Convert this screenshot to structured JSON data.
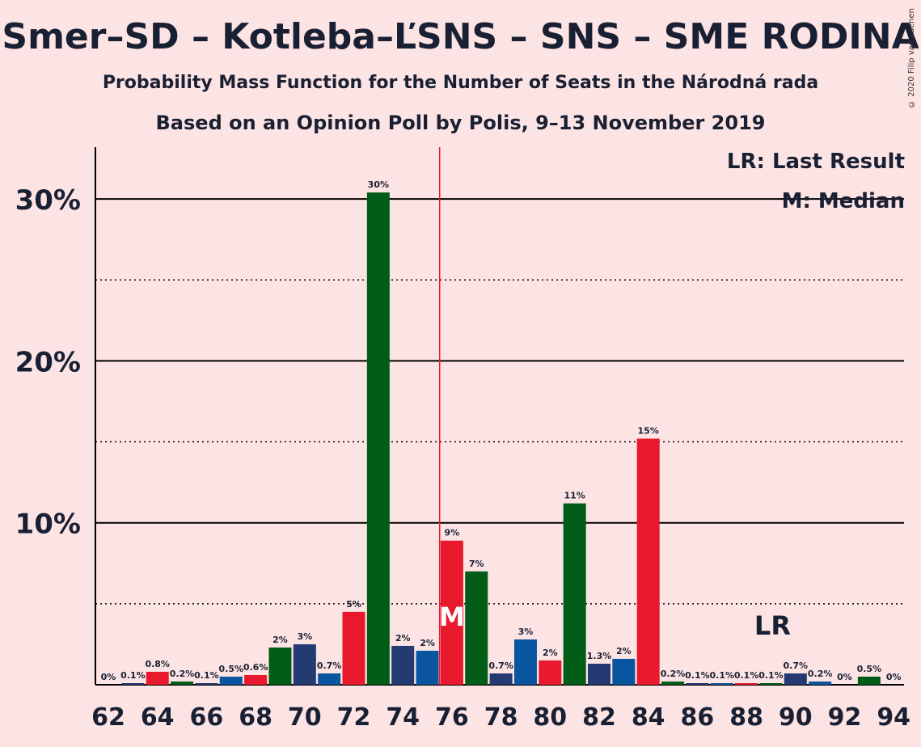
{
  "chart_data": {
    "type": "bar",
    "title": "Smer–SD – Kotleba–ĽSNS – SNS – SME RODINA",
    "subtitle1": "Probability Mass Function for the Number of Seats in the Národná rada",
    "subtitle2": "Based on an Opinion Poll by Polis, 9–13 November 2019",
    "copyright": "© 2020 Filip van Laenen",
    "legend_lr": "LR: Last Result",
    "legend_m": "M: Median",
    "median_marker": "M",
    "lr_marker": "LR",
    "median_seat": 76,
    "last_result_seat": 89,
    "ylim": [
      0,
      33
    ],
    "ytick_labels": [
      "10%",
      "20%",
      "30%"
    ],
    "yticks": [
      10,
      20,
      30
    ],
    "xtick_labels": [
      "62",
      "64",
      "66",
      "68",
      "70",
      "72",
      "74",
      "76",
      "78",
      "80",
      "82",
      "84",
      "86",
      "88",
      "90",
      "92",
      "94"
    ],
    "colors": {
      "red": "#e8192c",
      "navy": "#243a73",
      "green": "#005c16",
      "blue": "#0a55a0"
    },
    "bars": [
      {
        "x": 62,
        "value": 0.0,
        "label": "0%",
        "color": "red"
      },
      {
        "x": 63,
        "value": 0.1,
        "label": "0.1%",
        "color": "navy"
      },
      {
        "x": 64,
        "value": 0.8,
        "label": "0.8%",
        "color": "red"
      },
      {
        "x": 65,
        "value": 0.2,
        "label": "0.2%",
        "color": "green"
      },
      {
        "x": 66,
        "value": 0.1,
        "label": "0.1%",
        "color": "navy"
      },
      {
        "x": 67,
        "value": 0.5,
        "label": "0.5%",
        "color": "blue"
      },
      {
        "x": 68,
        "value": 0.6,
        "label": "0.6%",
        "color": "red"
      },
      {
        "x": 69,
        "value": 2.3,
        "label": "2%",
        "color": "green"
      },
      {
        "x": 70,
        "value": 2.5,
        "label": "3%",
        "color": "navy"
      },
      {
        "x": 71,
        "value": 0.7,
        "label": "0.7%",
        "color": "blue"
      },
      {
        "x": 72,
        "value": 4.5,
        "label": "5%",
        "color": "red"
      },
      {
        "x": 73,
        "value": 30.4,
        "label": "30%",
        "color": "green"
      },
      {
        "x": 74,
        "value": 2.4,
        "label": "2%",
        "color": "navy"
      },
      {
        "x": 75,
        "value": 2.1,
        "label": "2%",
        "color": "blue"
      },
      {
        "x": 76,
        "value": 8.9,
        "label": "9%",
        "color": "red"
      },
      {
        "x": 77,
        "value": 7.0,
        "label": "7%",
        "color": "green"
      },
      {
        "x": 78,
        "value": 0.7,
        "label": "0.7%",
        "color": "navy"
      },
      {
        "x": 79,
        "value": 2.8,
        "label": "3%",
        "color": "blue"
      },
      {
        "x": 80,
        "value": 1.5,
        "label": "2%",
        "color": "red"
      },
      {
        "x": 81,
        "value": 11.2,
        "label": "11%",
        "color": "green"
      },
      {
        "x": 82,
        "value": 1.3,
        "label": "1.3%",
        "color": "navy"
      },
      {
        "x": 83,
        "value": 1.6,
        "label": "2%",
        "color": "blue"
      },
      {
        "x": 84,
        "value": 15.2,
        "label": "15%",
        "color": "red"
      },
      {
        "x": 85,
        "value": 0.2,
        "label": "0.2%",
        "color": "green"
      },
      {
        "x": 86,
        "value": 0.1,
        "label": "0.1%",
        "color": "navy"
      },
      {
        "x": 87,
        "value": 0.1,
        "label": "0.1%",
        "color": "blue"
      },
      {
        "x": 88,
        "value": 0.1,
        "label": "0.1%",
        "color": "red"
      },
      {
        "x": 89,
        "value": 0.1,
        "label": "0.1%",
        "color": "green"
      },
      {
        "x": 90,
        "value": 0.7,
        "label": "0.7%",
        "color": "navy"
      },
      {
        "x": 91,
        "value": 0.2,
        "label": "0.2%",
        "color": "blue"
      },
      {
        "x": 92,
        "value": 0.0,
        "label": "0%",
        "color": "red"
      },
      {
        "x": 93,
        "value": 0.5,
        "label": "0.5%",
        "color": "green"
      },
      {
        "x": 94,
        "value": 0.0,
        "label": "0%",
        "color": "navy"
      }
    ]
  }
}
